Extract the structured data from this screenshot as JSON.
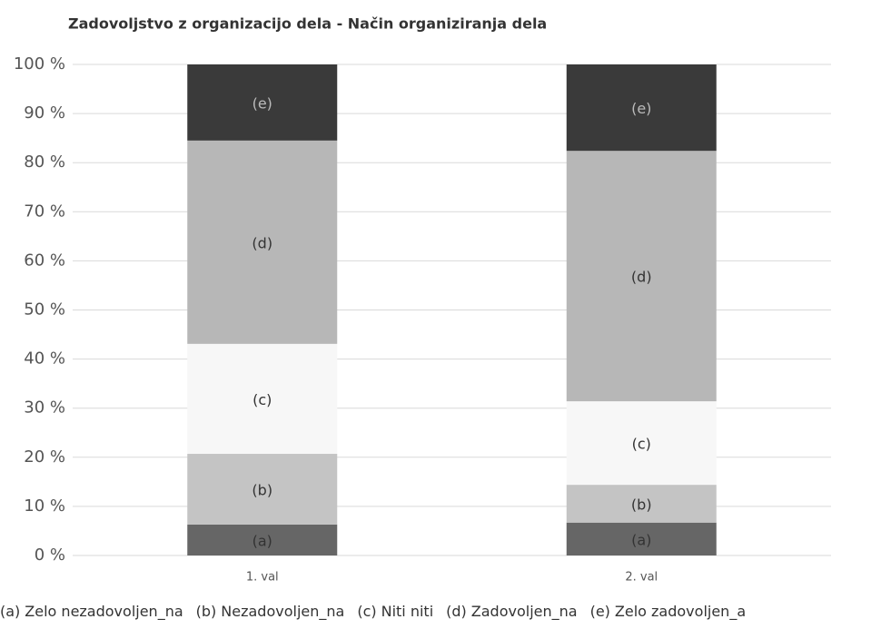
{
  "chart_data": {
    "type": "stacked_bar",
    "title": "Zadovoljstvo z organizacijo dela - Način organiziranja dela",
    "categories": [
      "1. val",
      "2. val"
    ],
    "series": [
      {
        "label": "(a)",
        "name": "Zelo nezadovoljen_na",
        "color": "#666666",
        "values": [
          6.3,
          6.7
        ]
      },
      {
        "label": "(b)",
        "name": "Nezadovoljen_na",
        "color": "#c4c4c4",
        "values": [
          14.4,
          7.7
        ]
      },
      {
        "label": "(c)",
        "name": "Niti niti",
        "color": "#f7f7f7",
        "values": [
          22.4,
          17.0
        ]
      },
      {
        "label": "(d)",
        "name": "Zadovoljen_na",
        "color": "#b7b7b7",
        "values": [
          41.4,
          51.0
        ]
      },
      {
        "label": "(e)",
        "name": "Zelo zadovoljen_a",
        "color": "#3a3a3a",
        "values": [
          15.5,
          17.6
        ]
      }
    ],
    "ylim": [
      0,
      100
    ],
    "yticks": [
      {
        "value": 0,
        "label": "0 %"
      },
      {
        "value": 10,
        "label": "10 %"
      },
      {
        "value": 20,
        "label": "20 %"
      },
      {
        "value": 30,
        "label": "30 %"
      },
      {
        "value": 40,
        "label": "40 %"
      },
      {
        "value": 50,
        "label": "50 %"
      },
      {
        "value": 60,
        "label": "60 %"
      },
      {
        "value": 70,
        "label": "70 %"
      },
      {
        "value": 80,
        "label": "80 %"
      },
      {
        "value": 90,
        "label": "90 %"
      },
      {
        "value": 100,
        "label": "100 %"
      }
    ],
    "grid": true,
    "legend": "bottom"
  }
}
